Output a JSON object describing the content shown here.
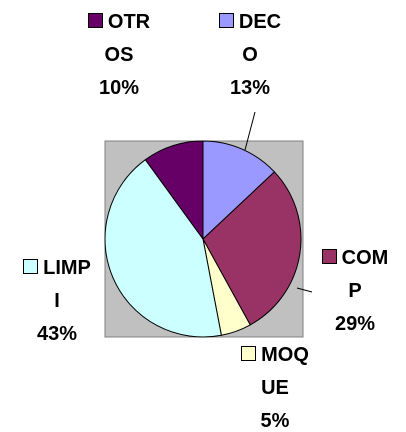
{
  "chart_data": {
    "type": "pie",
    "categories": [
      "DECO",
      "COMP",
      "MOQUE",
      "LIMPI",
      "OTROS"
    ],
    "values": [
      13,
      29,
      5,
      43,
      10
    ],
    "value_labels": [
      "13%",
      "29%",
      "5%",
      "43%",
      "10%"
    ],
    "colors": [
      "#9999ff",
      "#993366",
      "#ffffcc",
      "#ccffff",
      "#660066"
    ]
  }
}
